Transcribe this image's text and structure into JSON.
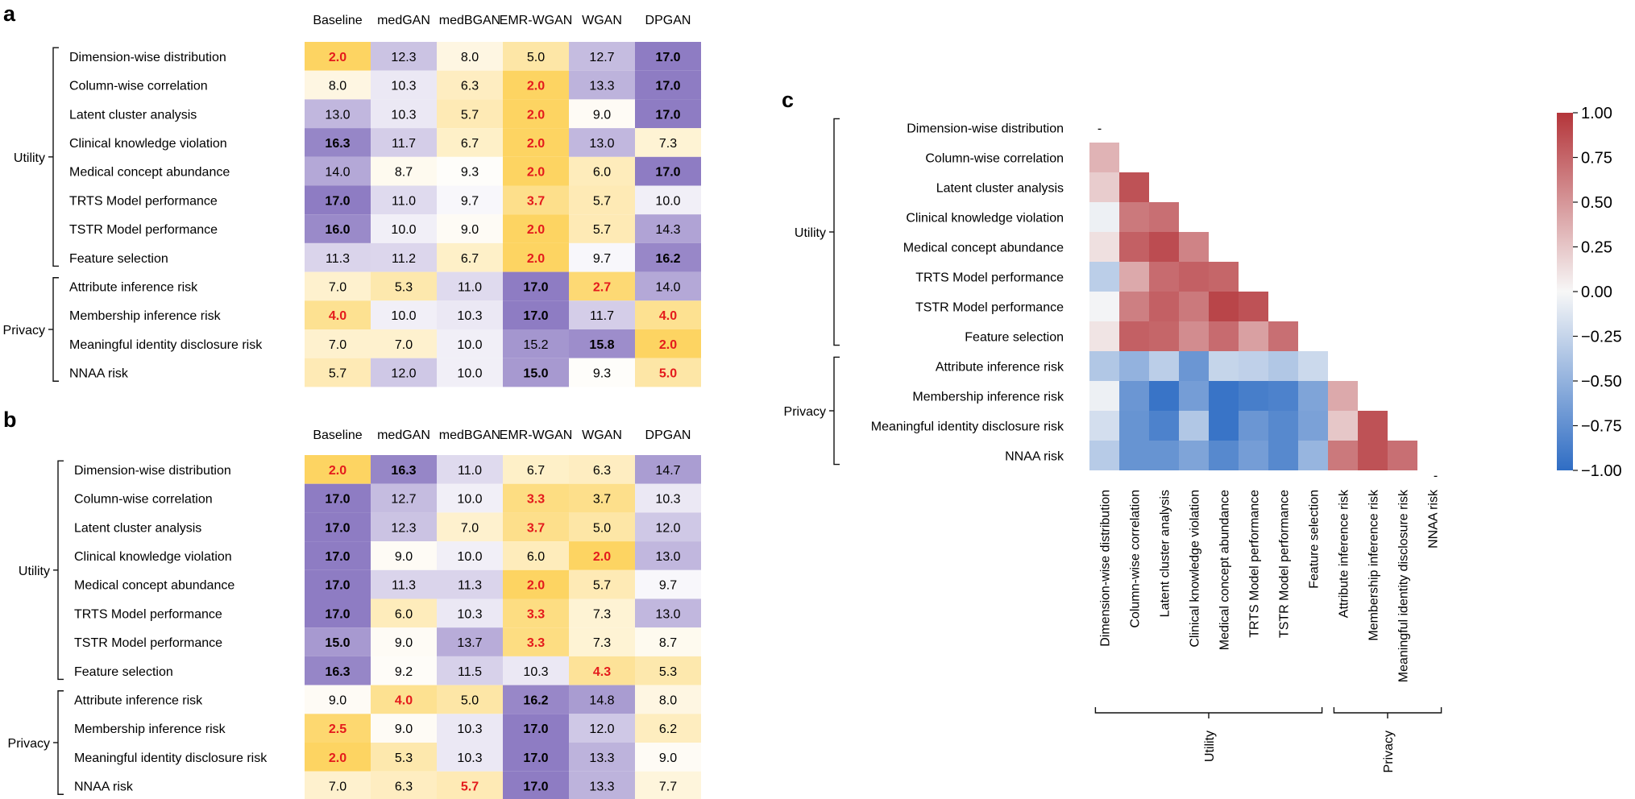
{
  "chart_data": [
    {
      "type": "heatmap",
      "panel_label": "a",
      "columns": [
        "Baseline",
        "medGAN",
        "medBGAN",
        "EMR-WGAN",
        "WGAN",
        "DPGAN"
      ],
      "rows": [
        "Dimension-wise distribution",
        "Column-wise correlation",
        "Latent cluster analysis",
        "Clinical knowledge violation",
        "Medical concept abundance",
        "TRTS Model performance",
        "TSTR Model performance",
        "Feature selection",
        "Attribute inference risk",
        "Membership inference risk",
        "Meaningful identity disclosure risk",
        "NNAA risk"
      ],
      "groups": [
        {
          "name": "Utility",
          "rows": 8
        },
        {
          "name": "Privacy",
          "rows": 4
        }
      ],
      "values": [
        [
          "2.0",
          "12.3",
          "8.0",
          "5.0",
          "12.7",
          "17.0"
        ],
        [
          "8.0",
          "10.3",
          "6.3",
          "2.0",
          "13.3",
          "17.0"
        ],
        [
          "13.0",
          "10.3",
          "5.7",
          "2.0",
          "9.0",
          "17.0"
        ],
        [
          "16.3",
          "11.7",
          "6.7",
          "2.0",
          "13.0",
          "7.3"
        ],
        [
          "14.0",
          "8.7",
          "9.3",
          "2.0",
          "6.0",
          "17.0"
        ],
        [
          "17.0",
          "11.0",
          "9.7",
          "3.7",
          "5.7",
          "10.0"
        ],
        [
          "16.0",
          "10.0",
          "9.0",
          "2.0",
          "5.7",
          "14.3"
        ],
        [
          "11.3",
          "11.2",
          "6.7",
          "2.0",
          "9.7",
          "16.2"
        ],
        [
          "7.0",
          "5.3",
          "11.0",
          "17.0",
          "2.7",
          "14.0"
        ],
        [
          "4.0",
          "10.0",
          "10.3",
          "17.0",
          "11.7",
          "4.0"
        ],
        [
          "7.0",
          "7.0",
          "10.0",
          "15.2",
          "15.8",
          "2.0"
        ],
        [
          "5.7",
          "12.0",
          "10.0",
          "15.0",
          "9.3",
          "5.0"
        ]
      ],
      "color_range": [
        2,
        17
      ],
      "colors": {
        "low": "#fdd462",
        "mid": "#fefefe",
        "high": "#8e7cc3",
        "best_text": "#e41a1c"
      }
    },
    {
      "type": "heatmap",
      "panel_label": "b",
      "columns": [
        "Baseline",
        "medGAN",
        "medBGAN",
        "EMR-WGAN",
        "WGAN",
        "DPGAN"
      ],
      "rows": [
        "Dimension-wise distribution",
        "Column-wise correlation",
        "Latent cluster analysis",
        "Clinical knowledge violation",
        "Medical concept abundance",
        "TRTS Model performance",
        "TSTR Model performance",
        "Feature selection",
        "Attribute inference risk",
        "Membership inference risk",
        "Meaningful identity disclosure risk",
        "NNAA risk"
      ],
      "groups": [
        {
          "name": "Utility",
          "rows": 8
        },
        {
          "name": "Privacy",
          "rows": 4
        }
      ],
      "values": [
        [
          "2.0",
          "16.3",
          "11.0",
          "6.7",
          "6.3",
          "14.7"
        ],
        [
          "17.0",
          "12.7",
          "10.0",
          "3.3",
          "3.7",
          "10.3"
        ],
        [
          "17.0",
          "12.3",
          "7.0",
          "3.7",
          "5.0",
          "12.0"
        ],
        [
          "17.0",
          "9.0",
          "10.0",
          "6.0",
          "2.0",
          "13.0"
        ],
        [
          "17.0",
          "11.3",
          "11.3",
          "2.0",
          "5.7",
          "9.7"
        ],
        [
          "17.0",
          "6.0",
          "10.3",
          "3.3",
          "7.3",
          "13.0"
        ],
        [
          "15.0",
          "9.0",
          "13.7",
          "3.3",
          "7.3",
          "8.7"
        ],
        [
          "16.3",
          "9.2",
          "11.5",
          "10.3",
          "4.3",
          "5.3"
        ],
        [
          "9.0",
          "4.0",
          "5.0",
          "16.2",
          "14.8",
          "8.0"
        ],
        [
          "2.5",
          "9.0",
          "10.3",
          "17.0",
          "12.0",
          "6.2"
        ],
        [
          "2.0",
          "5.3",
          "10.3",
          "17.0",
          "13.3",
          "9.0"
        ],
        [
          "7.0",
          "6.3",
          "5.7",
          "17.0",
          "13.3",
          "7.7"
        ]
      ],
      "color_range": [
        2,
        17
      ],
      "colors": {
        "low": "#fdd462",
        "mid": "#fefefe",
        "high": "#8e7cc3",
        "best_text": "#e41a1c"
      }
    },
    {
      "type": "heatmap",
      "panel_label": "c",
      "labels": [
        "Dimension-wise distribution",
        "Column-wise correlation",
        "Latent cluster analysis",
        "Clinical knowledge violation",
        "Medical concept abundance",
        "TRTS Model performance",
        "TSTR Model performance",
        "Feature selection",
        "Attribute inference risk",
        "Membership inference risk",
        "Meaningful identity disclosure risk",
        "NNAA risk"
      ],
      "groups": [
        {
          "name": "Utility",
          "rows": 8
        },
        {
          "name": "Privacy",
          "rows": 4
        }
      ],
      "lower_triangle": [
        [],
        [
          0.35
        ],
        [
          0.22,
          0.85
        ],
        [
          -0.05,
          0.65,
          0.7
        ],
        [
          0.12,
          0.78,
          0.88,
          0.6
        ],
        [
          -0.3,
          0.4,
          0.72,
          0.78,
          0.75
        ],
        [
          -0.02,
          0.62,
          0.78,
          0.65,
          0.92,
          0.85
        ],
        [
          0.1,
          0.78,
          0.75,
          0.55,
          0.72,
          0.45,
          0.7
        ],
        [
          -0.35,
          -0.5,
          -0.3,
          -0.7,
          -0.25,
          -0.28,
          -0.35,
          -0.22
        ],
        [
          -0.05,
          -0.7,
          -0.95,
          -0.65,
          -0.95,
          -0.88,
          -0.85,
          -0.6,
          0.4
        ],
        [
          -0.18,
          -0.72,
          -0.85,
          -0.35,
          -0.95,
          -0.7,
          -0.8,
          -0.62,
          0.25,
          0.85
        ],
        [
          -0.32,
          -0.72,
          -0.72,
          -0.6,
          -0.8,
          -0.65,
          -0.8,
          -0.48,
          0.65,
          0.85,
          0.7
        ]
      ],
      "diagonal_mark": "-",
      "colorbar_ticks": [
        "1.00",
        "0.75",
        "0.50",
        "0.25",
        "0.00",
        "−0.25",
        "−0.50",
        "−0.75",
        "−1.00"
      ],
      "colorbar_range": [
        -1,
        1
      ],
      "colors": {
        "neg": "#2f6dc4",
        "zero": "#f7f7f7",
        "pos": "#b4353a"
      }
    }
  ]
}
